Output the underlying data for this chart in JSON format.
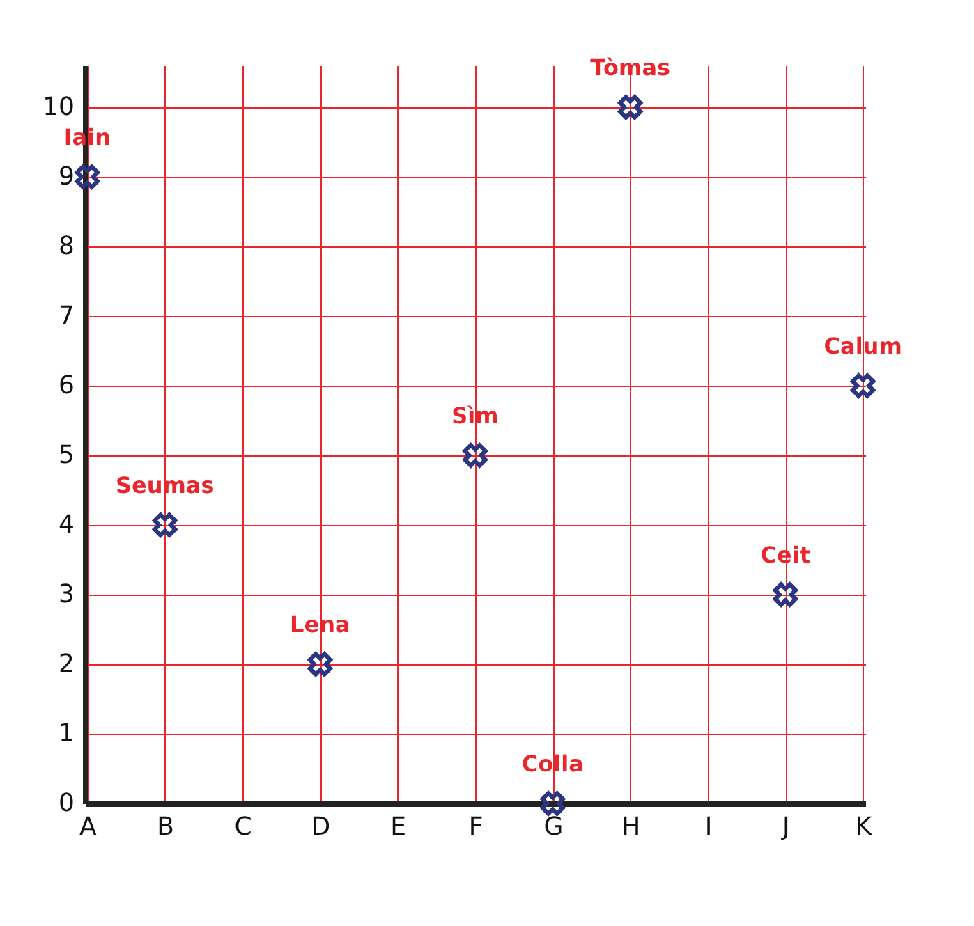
{
  "chart_data": {
    "type": "scatter",
    "categories": [
      "A",
      "B",
      "C",
      "D",
      "E",
      "F",
      "G",
      "H",
      "I",
      "J",
      "K"
    ],
    "series": [
      {
        "color": "#2b3580",
        "values": [
          9,
          4,
          null,
          2,
          null,
          5,
          0,
          10,
          null,
          3,
          6
        ],
        "value_labels": [
          "Iain",
          "Seumas",
          null,
          "Lena",
          null,
          "Sìm",
          "Colla",
          "Tòmas",
          null,
          "Ceit",
          "Calum"
        ]
      }
    ],
    "ylim": [
      0,
      10.6
    ],
    "yticks": [
      0,
      1,
      2,
      3,
      4,
      5,
      6,
      7,
      8,
      9,
      10
    ],
    "grid": true,
    "marker": "cross"
  }
}
